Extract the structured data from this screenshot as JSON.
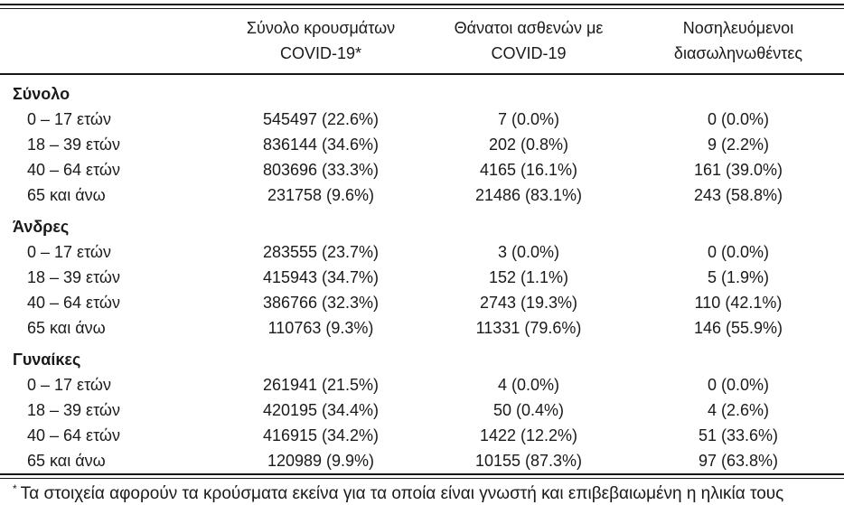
{
  "table": {
    "headers": [
      {
        "line1": "Σύνολο κρουσμάτων",
        "line2": "COVID-19*"
      },
      {
        "line1": "Θάνατοι ασθενών με",
        "line2": "COVID-19"
      },
      {
        "line1": "Νοσηλευόμενοι",
        "line2": "διασωληνωθέντες"
      }
    ],
    "sections": [
      {
        "label": "Σύνολο",
        "rows": [
          {
            "label": "0 – 17 ετών",
            "cases": "545497 (22.6%)",
            "deaths": "7 (0.0%)",
            "intubated": "0 (0.0%)"
          },
          {
            "label": "18 – 39 ετών",
            "cases": "836144 (34.6%)",
            "deaths": "202 (0.8%)",
            "intubated": "9 (2.2%)"
          },
          {
            "label": "40 – 64 ετών",
            "cases": "803696 (33.3%)",
            "deaths": "4165 (16.1%)",
            "intubated": "161 (39.0%)"
          },
          {
            "label": "65 και άνω",
            "cases": "231758 (9.6%)",
            "deaths": "21486 (83.1%)",
            "intubated": "243 (58.8%)"
          }
        ]
      },
      {
        "label": "Άνδρες",
        "rows": [
          {
            "label": "0 – 17 ετών",
            "cases": "283555 (23.7%)",
            "deaths": "3 (0.0%)",
            "intubated": "0 (0.0%)"
          },
          {
            "label": "18 – 39 ετών",
            "cases": "415943 (34.7%)",
            "deaths": "152 (1.1%)",
            "intubated": "5 (1.9%)"
          },
          {
            "label": "40 – 64 ετών",
            "cases": "386766 (32.3%)",
            "deaths": "2743 (19.3%)",
            "intubated": "110 (42.1%)"
          },
          {
            "label": "65 και άνω",
            "cases": "110763 (9.3%)",
            "deaths": "11331 (79.6%)",
            "intubated": "146 (55.9%)"
          }
        ]
      },
      {
        "label": "Γυναίκες",
        "rows": [
          {
            "label": "0 – 17 ετών",
            "cases": "261941 (21.5%)",
            "deaths": "4 (0.0%)",
            "intubated": "0 (0.0%)"
          },
          {
            "label": "18 – 39 ετών",
            "cases": "420195 (34.4%)",
            "deaths": "50 (0.4%)",
            "intubated": "4 (2.6%)"
          },
          {
            "label": "40 – 64 ετών",
            "cases": "416915 (34.2%)",
            "deaths": "1422 (12.2%)",
            "intubated": "51 (33.6%)"
          },
          {
            "label": "65 και άνω",
            "cases": "120989 (9.9%)",
            "deaths": "10155 (87.3%)",
            "intubated": "97 (63.8%)"
          }
        ]
      }
    ]
  },
  "footnote": {
    "marker": "*",
    "text": "Τα στοιχεία αφορούν τα κρούσματα εκείνα για τα οποία είναι γνωστή και επιβεβαιωμένη η ηλικία τους"
  },
  "colors": {
    "text": "#1a1a1a",
    "rule": "#161616",
    "background": "#ffffff"
  }
}
